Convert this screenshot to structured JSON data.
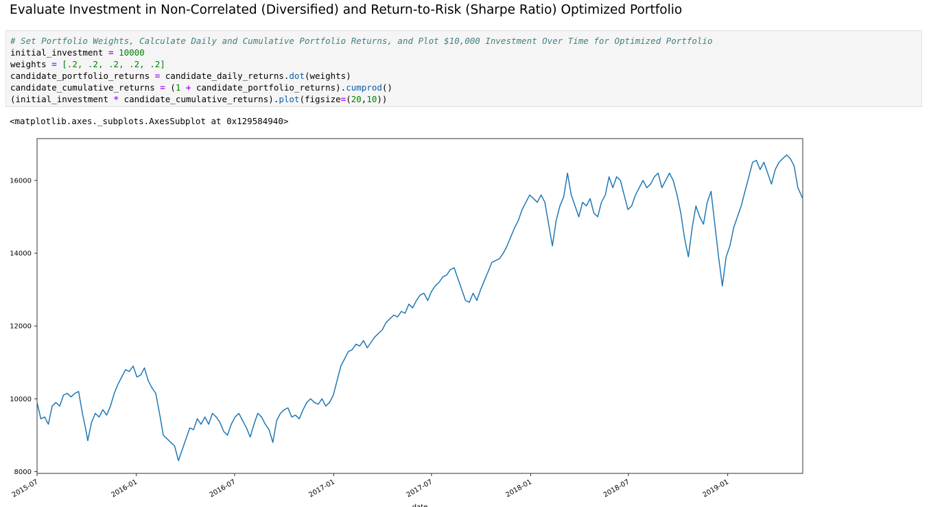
{
  "heading": "Evaluate Investment in Non-Correlated (Diversified) and Return-to-Risk (Sharpe Ratio) Optimized Portfolio",
  "code": {
    "comment": "# Set Portfolio Weights, Calculate Daily and Cumulative Portfolio Returns, and Plot $10,000 Investment Over Time for Optimized Portfolio",
    "line1": {
      "a": "initial_investment ",
      "op": "=",
      "b": " ",
      "num": "10000"
    },
    "line2": {
      "a": "weights ",
      "op": "=",
      "b": " ",
      "list": "[.2, .2, .2, .2, .2]"
    },
    "line3": {
      "a": "candidate_portfolio_returns ",
      "op": "=",
      "b": " candidate_daily_returns.",
      "fn": "dot",
      "c": "(weights)"
    },
    "line4": {
      "a": "candidate_cumulative_returns ",
      "op": "=",
      "b": " (",
      "num": "1",
      "op2": " + ",
      "c": "candidate_portfolio_returns).",
      "fn": "cumprod",
      "d": "()"
    },
    "line5": {
      "a": "(initial_investment ",
      "op": "*",
      "b": " candidate_cumulative_returns).",
      "fn": "plot",
      "c": "(figsize",
      "op2": "=",
      "d": "(",
      "num1": "20",
      "e": ",",
      "num2": "10",
      "f": "))"
    }
  },
  "output_text": "<matplotlib.axes._subplots.AxesSubplot at 0x129584940>",
  "colors": {
    "line": "#1f77b4",
    "code_bg": "#f5f5f5"
  },
  "chart_data": {
    "type": "line",
    "title": "",
    "xlabel": "date",
    "ylabel": "",
    "x_start": "2015-07-01",
    "x_end": "2019-05-20",
    "ylim": [
      7950,
      17150
    ],
    "yticks": [
      8000,
      10000,
      12000,
      14000,
      16000
    ],
    "xticks": [
      "2015-07",
      "2016-01",
      "2016-07",
      "2017-01",
      "2017-07",
      "2018-01",
      "2018-07",
      "2019-01"
    ],
    "grid": false,
    "legend": "none",
    "series": [
      {
        "values": [
          [
            "2015-07-01",
            9900
          ],
          [
            "2015-07-08",
            9450
          ],
          [
            "2015-07-15",
            9500
          ],
          [
            "2015-07-22",
            9300
          ],
          [
            "2015-07-29",
            9800
          ],
          [
            "2015-08-05",
            9900
          ],
          [
            "2015-08-12",
            9800
          ],
          [
            "2015-08-19",
            10100
          ],
          [
            "2015-08-26",
            10150
          ],
          [
            "2015-09-02",
            10050
          ],
          [
            "2015-09-09",
            10150
          ],
          [
            "2015-09-16",
            10200
          ],
          [
            "2015-09-23",
            9600
          ],
          [
            "2015-09-30",
            9100
          ],
          [
            "2015-10-03",
            8850
          ],
          [
            "2015-10-10",
            9350
          ],
          [
            "2015-10-17",
            9600
          ],
          [
            "2015-10-24",
            9500
          ],
          [
            "2015-10-31",
            9700
          ],
          [
            "2015-11-07",
            9550
          ],
          [
            "2015-11-14",
            9800
          ],
          [
            "2015-11-21",
            10150
          ],
          [
            "2015-11-28",
            10400
          ],
          [
            "2015-12-05",
            10600
          ],
          [
            "2015-12-12",
            10800
          ],
          [
            "2015-12-19",
            10750
          ],
          [
            "2015-12-26",
            10900
          ],
          [
            "2016-01-02",
            10600
          ],
          [
            "2016-01-09",
            10650
          ],
          [
            "2016-01-16",
            10850
          ],
          [
            "2016-01-23",
            10500
          ],
          [
            "2016-01-30",
            10300
          ],
          [
            "2016-02-06",
            10150
          ],
          [
            "2016-02-13",
            9600
          ],
          [
            "2016-02-20",
            9000
          ],
          [
            "2016-02-27",
            8900
          ],
          [
            "2016-03-05",
            8800
          ],
          [
            "2016-03-12",
            8700
          ],
          [
            "2016-03-19",
            8300
          ],
          [
            "2016-03-26",
            8600
          ],
          [
            "2016-04-02",
            8900
          ],
          [
            "2016-04-09",
            9200
          ],
          [
            "2016-04-16",
            9150
          ],
          [
            "2016-04-23",
            9450
          ],
          [
            "2016-04-30",
            9300
          ],
          [
            "2016-05-07",
            9500
          ],
          [
            "2016-05-14",
            9300
          ],
          [
            "2016-05-21",
            9600
          ],
          [
            "2016-05-28",
            9500
          ],
          [
            "2016-06-04",
            9350
          ],
          [
            "2016-06-11",
            9100
          ],
          [
            "2016-06-18",
            9000
          ],
          [
            "2016-06-25",
            9300
          ],
          [
            "2016-07-02",
            9500
          ],
          [
            "2016-07-09",
            9600
          ],
          [
            "2016-07-16",
            9400
          ],
          [
            "2016-07-23",
            9200
          ],
          [
            "2016-07-30",
            8950
          ],
          [
            "2016-08-06",
            9300
          ],
          [
            "2016-08-13",
            9600
          ],
          [
            "2016-08-20",
            9500
          ],
          [
            "2016-08-27",
            9300
          ],
          [
            "2016-09-03",
            9150
          ],
          [
            "2016-09-10",
            8800
          ],
          [
            "2016-09-17",
            9400
          ],
          [
            "2016-09-24",
            9600
          ],
          [
            "2016-10-01",
            9700
          ],
          [
            "2016-10-08",
            9750
          ],
          [
            "2016-10-15",
            9500
          ],
          [
            "2016-10-22",
            9550
          ],
          [
            "2016-10-29",
            9450
          ],
          [
            "2016-11-05",
            9700
          ],
          [
            "2016-11-12",
            9900
          ],
          [
            "2016-11-19",
            10000
          ],
          [
            "2016-11-26",
            9900
          ],
          [
            "2016-12-03",
            9850
          ],
          [
            "2016-12-10",
            10000
          ],
          [
            "2016-12-17",
            9800
          ],
          [
            "2016-12-24",
            9900
          ],
          [
            "2016-12-31",
            10100
          ],
          [
            "2017-01-07",
            10500
          ],
          [
            "2017-01-14",
            10900
          ],
          [
            "2017-01-21",
            11100
          ],
          [
            "2017-01-28",
            11300
          ],
          [
            "2017-02-04",
            11350
          ],
          [
            "2017-02-11",
            11500
          ],
          [
            "2017-02-18",
            11450
          ],
          [
            "2017-02-25",
            11600
          ],
          [
            "2017-03-04",
            11400
          ],
          [
            "2017-03-11",
            11550
          ],
          [
            "2017-03-18",
            11700
          ],
          [
            "2017-03-25",
            11800
          ],
          [
            "2017-04-01",
            11900
          ],
          [
            "2017-04-08",
            12100
          ],
          [
            "2017-04-15",
            12200
          ],
          [
            "2017-04-22",
            12300
          ],
          [
            "2017-04-29",
            12250
          ],
          [
            "2017-05-06",
            12400
          ],
          [
            "2017-05-13",
            12350
          ],
          [
            "2017-05-20",
            12600
          ],
          [
            "2017-05-27",
            12500
          ],
          [
            "2017-06-03",
            12700
          ],
          [
            "2017-06-10",
            12850
          ],
          [
            "2017-06-17",
            12900
          ],
          [
            "2017-06-24",
            12700
          ],
          [
            "2017-07-01",
            12950
          ],
          [
            "2017-07-08",
            13100
          ],
          [
            "2017-07-15",
            13200
          ],
          [
            "2017-07-22",
            13350
          ],
          [
            "2017-07-29",
            13400
          ],
          [
            "2017-08-05",
            13550
          ],
          [
            "2017-08-12",
            13600
          ],
          [
            "2017-08-19",
            13300
          ],
          [
            "2017-08-26",
            13000
          ],
          [
            "2017-09-02",
            12700
          ],
          [
            "2017-09-09",
            12650
          ],
          [
            "2017-09-16",
            12900
          ],
          [
            "2017-09-23",
            12700
          ],
          [
            "2017-09-30",
            13000
          ],
          [
            "2017-10-07",
            13250
          ],
          [
            "2017-10-14",
            13500
          ],
          [
            "2017-10-21",
            13750
          ],
          [
            "2017-10-28",
            13800
          ],
          [
            "2017-11-04",
            13850
          ],
          [
            "2017-11-11",
            14000
          ],
          [
            "2017-11-18",
            14200
          ],
          [
            "2017-11-25",
            14450
          ],
          [
            "2017-12-02",
            14700
          ],
          [
            "2017-12-09",
            14900
          ],
          [
            "2017-12-16",
            15200
          ],
          [
            "2017-12-23",
            15400
          ],
          [
            "2017-12-30",
            15600
          ],
          [
            "2018-01-06",
            15500
          ],
          [
            "2018-01-13",
            15400
          ],
          [
            "2018-01-20",
            15600
          ],
          [
            "2018-01-27",
            15400
          ],
          [
            "2018-02-03",
            14800
          ],
          [
            "2018-02-10",
            14200
          ],
          [
            "2018-02-17",
            14900
          ],
          [
            "2018-02-24",
            15300
          ],
          [
            "2018-03-03",
            15550
          ],
          [
            "2018-03-10",
            16200
          ],
          [
            "2018-03-17",
            15600
          ],
          [
            "2018-03-24",
            15300
          ],
          [
            "2018-03-31",
            15000
          ],
          [
            "2018-04-07",
            15400
          ],
          [
            "2018-04-14",
            15300
          ],
          [
            "2018-04-21",
            15500
          ],
          [
            "2018-04-28",
            15100
          ],
          [
            "2018-05-05",
            15000
          ],
          [
            "2018-05-12",
            15400
          ],
          [
            "2018-05-19",
            15600
          ],
          [
            "2018-05-26",
            16100
          ],
          [
            "2018-06-02",
            15800
          ],
          [
            "2018-06-09",
            16100
          ],
          [
            "2018-06-16",
            16000
          ],
          [
            "2018-06-23",
            15600
          ],
          [
            "2018-06-30",
            15200
          ],
          [
            "2018-07-07",
            15300
          ],
          [
            "2018-07-14",
            15600
          ],
          [
            "2018-07-21",
            15800
          ],
          [
            "2018-07-28",
            16000
          ],
          [
            "2018-08-04",
            15800
          ],
          [
            "2018-08-11",
            15900
          ],
          [
            "2018-08-18",
            16100
          ],
          [
            "2018-08-25",
            16200
          ],
          [
            "2018-09-01",
            15800
          ],
          [
            "2018-09-08",
            16000
          ],
          [
            "2018-09-15",
            16200
          ],
          [
            "2018-09-22",
            16000
          ],
          [
            "2018-09-29",
            15600
          ],
          [
            "2018-10-06",
            15100
          ],
          [
            "2018-10-13",
            14400
          ],
          [
            "2018-10-20",
            13900
          ],
          [
            "2018-10-27",
            14700
          ],
          [
            "2018-11-03",
            15300
          ],
          [
            "2018-11-10",
            15000
          ],
          [
            "2018-11-17",
            14800
          ],
          [
            "2018-11-24",
            15400
          ],
          [
            "2018-12-01",
            15700
          ],
          [
            "2018-12-08",
            14800
          ],
          [
            "2018-12-15",
            13900
          ],
          [
            "2018-12-22",
            13100
          ],
          [
            "2018-12-29",
            13900
          ],
          [
            "2019-01-05",
            14200
          ],
          [
            "2019-01-12",
            14700
          ],
          [
            "2019-01-19",
            15000
          ],
          [
            "2019-01-26",
            15300
          ],
          [
            "2019-02-02",
            15700
          ],
          [
            "2019-02-09",
            16100
          ],
          [
            "2019-02-16",
            16500
          ],
          [
            "2019-02-23",
            16550
          ],
          [
            "2019-03-02",
            16300
          ],
          [
            "2019-03-09",
            16500
          ],
          [
            "2019-03-16",
            16200
          ],
          [
            "2019-03-23",
            15900
          ],
          [
            "2019-03-30",
            16300
          ],
          [
            "2019-04-06",
            16500
          ],
          [
            "2019-04-13",
            16600
          ],
          [
            "2019-04-20",
            16700
          ],
          [
            "2019-04-27",
            16600
          ],
          [
            "2019-05-04",
            16400
          ],
          [
            "2019-05-11",
            15800
          ],
          [
            "2019-05-20",
            15500
          ]
        ]
      }
    ]
  }
}
